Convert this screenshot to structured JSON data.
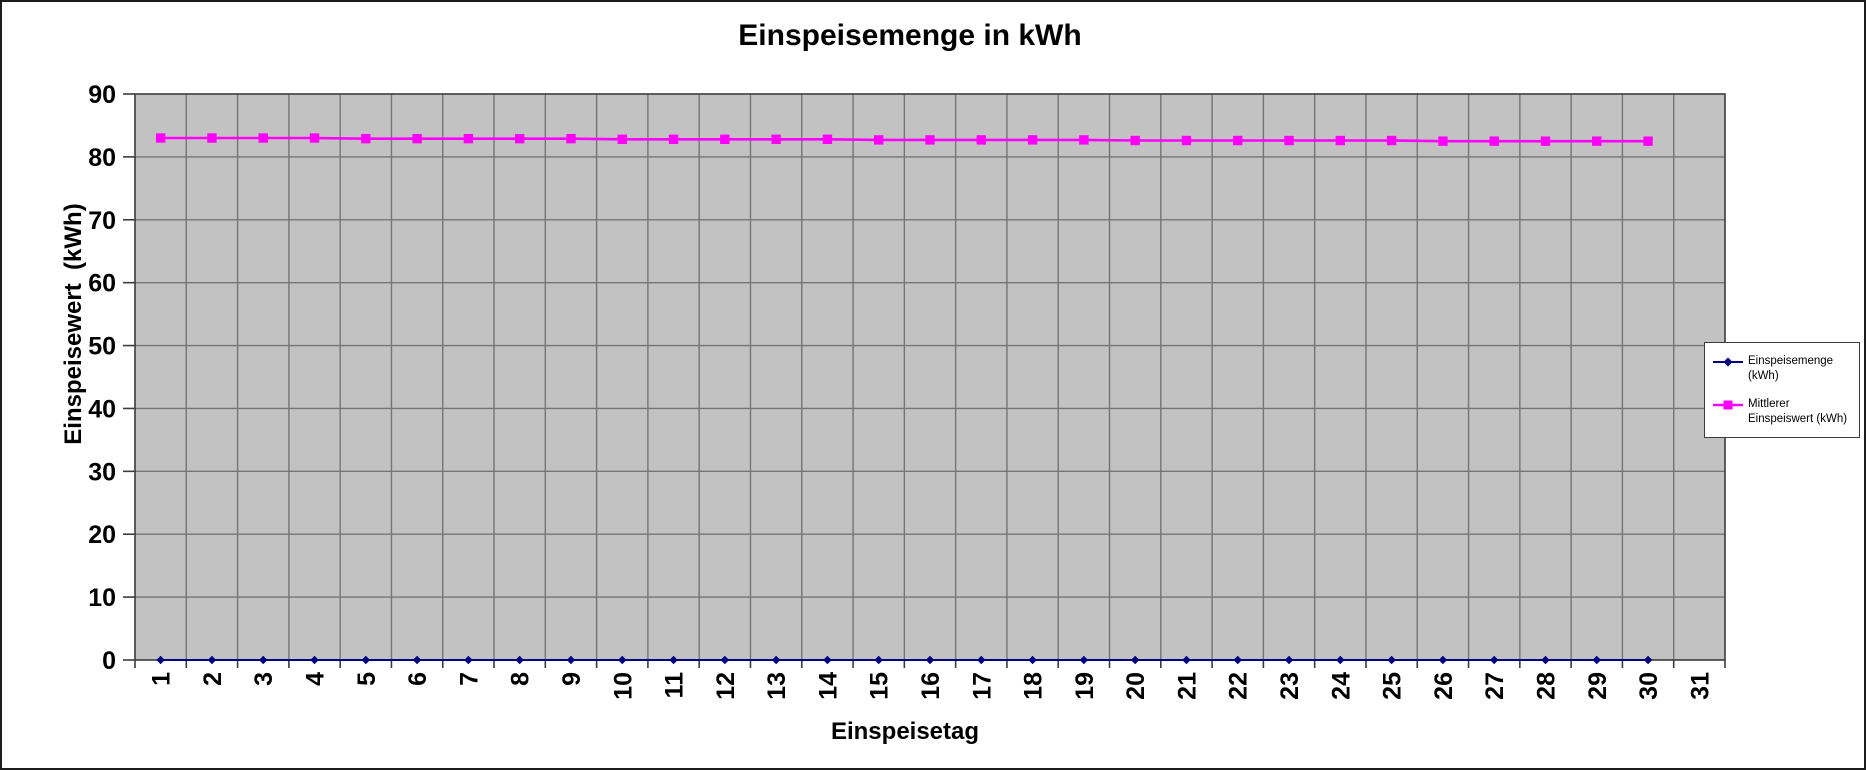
{
  "chart_data": {
    "type": "line",
    "title": "Einspeisemenge in kWh",
    "xlabel": "Einspeisetag",
    "ylabel": "Einspeisewert  (kWh)",
    "categories": [
      1,
      2,
      3,
      4,
      5,
      6,
      7,
      8,
      9,
      10,
      11,
      12,
      13,
      14,
      15,
      16,
      17,
      18,
      19,
      20,
      21,
      22,
      23,
      24,
      25,
      26,
      27,
      28,
      29,
      30,
      31
    ],
    "ylim": [
      0,
      90
    ],
    "yticks": [
      0,
      10,
      20,
      30,
      40,
      50,
      60,
      70,
      80,
      90
    ],
    "grid": true,
    "legend_position": "right",
    "plot_bg_color": "#c2c2c2",
    "grid_color": "#757575",
    "axis_color": "#3c3c3c",
    "series": [
      {
        "name": "Einspeisemenge (kWh)",
        "color": "#000080",
        "marker": "diamond",
        "x": [
          1,
          2,
          3,
          4,
          5,
          6,
          7,
          8,
          9,
          10,
          11,
          12,
          13,
          14,
          15,
          16,
          17,
          18,
          19,
          20,
          21,
          22,
          23,
          24,
          25,
          26,
          27,
          28,
          29,
          30
        ],
        "values": [
          0,
          0,
          0,
          0,
          0,
          0,
          0,
          0,
          0,
          0,
          0,
          0,
          0,
          0,
          0,
          0,
          0,
          0,
          0,
          0,
          0,
          0,
          0,
          0,
          0,
          0,
          0,
          0,
          0,
          0
        ]
      },
      {
        "name": "Mittlerer Einspeiswert (kWh)",
        "color": "#ff00ff",
        "marker": "square",
        "x": [
          1,
          2,
          3,
          4,
          5,
          6,
          7,
          8,
          9,
          10,
          11,
          12,
          13,
          14,
          15,
          16,
          17,
          18,
          19,
          20,
          21,
          22,
          23,
          24,
          25,
          26,
          27,
          28,
          29,
          30
        ],
        "values": [
          83,
          83,
          83,
          83,
          82.9,
          82.9,
          82.9,
          82.9,
          82.9,
          82.8,
          82.8,
          82.8,
          82.8,
          82.8,
          82.7,
          82.7,
          82.7,
          82.7,
          82.7,
          82.6,
          82.6,
          82.6,
          82.6,
          82.6,
          82.6,
          82.5,
          82.5,
          82.5,
          82.5,
          82.5
        ]
      }
    ]
  }
}
